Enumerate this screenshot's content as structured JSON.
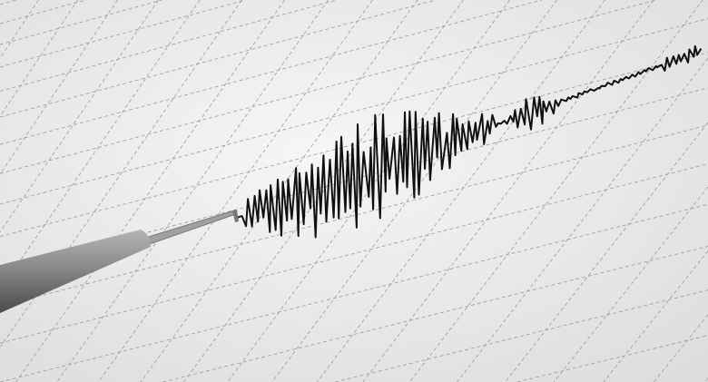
{
  "scene": {
    "subject": "seismograph-trace",
    "colors": {
      "paper": "#efefef",
      "grid": "#9a9a9a",
      "trace": "#111111",
      "pen_body": "#8c8c8c",
      "pen_rod": "#a8a8a8"
    }
  }
}
